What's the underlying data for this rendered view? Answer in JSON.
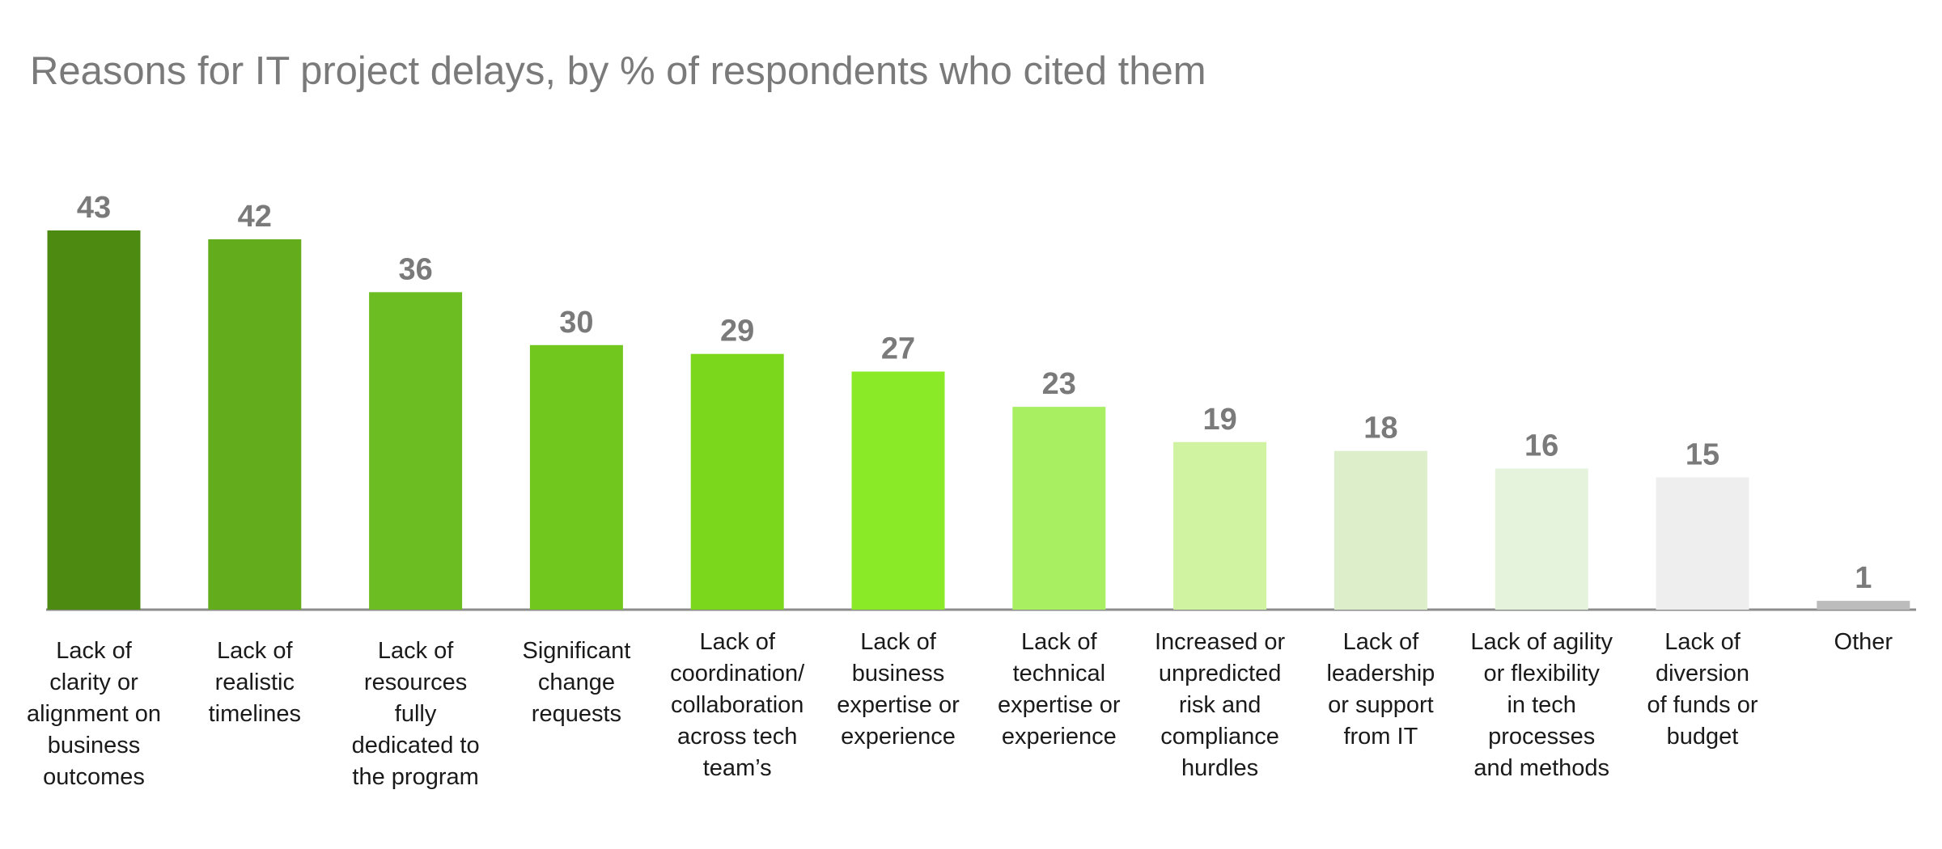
{
  "chart_data": {
    "type": "bar",
    "title": "Reasons for IT project delays, by % of respondents who cited them",
    "xlabel": "",
    "ylabel": "",
    "ylim": [
      0,
      43
    ],
    "grid": false,
    "legend": "none",
    "categories": [
      [
        "Lack of",
        "clarity or",
        "alignment on",
        "business",
        "outcomes"
      ],
      [
        "Lack of",
        "realistic",
        "timelines"
      ],
      [
        "Lack of",
        "resources",
        "fully",
        "dedicated to",
        "the program"
      ],
      [
        "Significant",
        "change",
        "requests"
      ],
      [
        "Lack of",
        "coordination/",
        "collaboration",
        "across tech",
        "team’s"
      ],
      [
        "Lack of",
        "business",
        "expertise or",
        "experience"
      ],
      [
        "Lack of",
        "technical",
        "expertise or",
        "experience"
      ],
      [
        "Increased or",
        "unpredicted",
        "risk and",
        "compliance",
        "hurdles"
      ],
      [
        "Lack of",
        "leadership",
        "or support",
        "from IT"
      ],
      [
        "Lack of agility",
        "or flexibility",
        "in tech",
        "processes",
        "and methods"
      ],
      [
        "Lack of",
        "diversion",
        "of funds or",
        "budget"
      ],
      [
        "Other"
      ]
    ],
    "values": [
      43,
      42,
      36,
      30,
      29,
      27,
      23,
      19,
      18,
      16,
      15,
      1
    ],
    "colors": [
      "#4d8a12",
      "#63ad1c",
      "#6bbd21",
      "#72c71e",
      "#7ad71b",
      "#8aea28",
      "#a9ef62",
      "#cff3a0",
      "#dcefca",
      "#e6f3dc",
      "#eeeeee",
      "#bcbcbc"
    ],
    "axis_color": "#8c8c8c"
  }
}
